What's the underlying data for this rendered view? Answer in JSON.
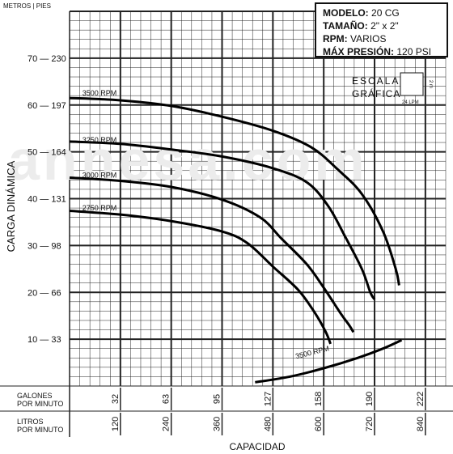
{
  "header": {
    "units_label": "METROS | PIES"
  },
  "info_box": {
    "model_label": "MODELO:",
    "model_value": "20 CG",
    "size_label": "TAMAÑO:",
    "size_value": "2\" x 2\"",
    "rpm_label": "RPM:",
    "rpm_value": "VARIOS",
    "pressure_label": "MÁX PRESIÓN:",
    "pressure_value": "120 PSI"
  },
  "scale": {
    "title_line1": "ESCALA",
    "title_line2": "GRÁFICA",
    "bottom_label": "24 LPM",
    "side_label": "2 m"
  },
  "watermark": "annesa.com",
  "chart_data": {
    "type": "line",
    "title": "",
    "xlabel": "CAPACIDAD",
    "ylabel": "CARGA DINÁMICA",
    "x_units": "LPM",
    "y_units": "m",
    "xlim": [
      0,
      888
    ],
    "ylim": [
      0,
      80
    ],
    "grid": true,
    "y_ticks": [
      {
        "m": 10,
        "ft": 33,
        "label": "10 — 33"
      },
      {
        "m": 20,
        "ft": 66,
        "label": "20 — 66"
      },
      {
        "m": 30,
        "ft": 98,
        "label": "30 — 98"
      },
      {
        "m": 40,
        "ft": 131,
        "label": "40 — 131"
      },
      {
        "m": 50,
        "ft": 164,
        "label": "50 — 164"
      },
      {
        "m": 60,
        "ft": 197,
        "label": "60 — 197"
      },
      {
        "m": 70,
        "ft": 230,
        "label": "70 — 230"
      }
    ],
    "x_ticks_gpm": {
      "row_label_line1": "GALONES",
      "row_label_line2": "POR MINUTO",
      "ticks": [
        {
          "lpm": 120,
          "label": "32"
        },
        {
          "lpm": 240,
          "label": "63"
        },
        {
          "lpm": 360,
          "label": "95"
        },
        {
          "lpm": 480,
          "label": "127"
        },
        {
          "lpm": 600,
          "label": "158"
        },
        {
          "lpm": 720,
          "label": "190"
        },
        {
          "lpm": 840,
          "label": "222"
        }
      ]
    },
    "x_ticks_lpm": {
      "row_label_line1": "LITROS",
      "row_label_line2": "POR MINUTO",
      "ticks": [
        {
          "lpm": 120,
          "label": "120"
        },
        {
          "lpm": 240,
          "label": "240"
        },
        {
          "lpm": 360,
          "label": "360"
        },
        {
          "lpm": 480,
          "label": "480"
        },
        {
          "lpm": 600,
          "label": "600"
        },
        {
          "lpm": 720,
          "label": "720"
        },
        {
          "lpm": 840,
          "label": "840"
        }
      ]
    },
    "series": [
      {
        "name": "3500 RPM",
        "label_at": [
          30,
          62
        ],
        "points": [
          [
            0,
            61.5
          ],
          [
            120,
            61.0
          ],
          [
            240,
            59.8
          ],
          [
            360,
            57.5
          ],
          [
            480,
            54.5
          ],
          [
            570,
            51.0
          ],
          [
            630,
            46.5
          ],
          [
            690,
            41.0
          ],
          [
            740,
            33.0
          ],
          [
            770,
            25.0
          ],
          [
            778,
            21.5
          ]
        ]
      },
      {
        "name": "3250 RPM",
        "label_at": [
          30,
          52
        ],
        "points": [
          [
            0,
            52.2
          ],
          [
            120,
            51.7
          ],
          [
            240,
            50.5
          ],
          [
            360,
            49.0
          ],
          [
            480,
            46.5
          ],
          [
            560,
            43.5
          ],
          [
            610,
            38.5
          ],
          [
            650,
            32.0
          ],
          [
            690,
            25.0
          ],
          [
            710,
            20.0
          ],
          [
            720,
            18.5
          ]
        ]
      },
      {
        "name": "3000 RPM",
        "label_at": [
          30,
          44.5
        ],
        "points": [
          [
            0,
            44.5
          ],
          [
            120,
            43.8
          ],
          [
            240,
            42.5
          ],
          [
            360,
            39.8
          ],
          [
            450,
            36.0
          ],
          [
            500,
            31.5
          ],
          [
            560,
            26.0
          ],
          [
            600,
            21.0
          ],
          [
            640,
            15.5
          ],
          [
            660,
            13.0
          ],
          [
            670,
            11.5
          ]
        ]
      },
      {
        "name": "2750 RPM",
        "label_at": [
          30,
          37.5
        ],
        "points": [
          [
            0,
            37.4
          ],
          [
            120,
            36.6
          ],
          [
            240,
            35.2
          ],
          [
            360,
            33.0
          ],
          [
            420,
            30.5
          ],
          [
            480,
            25.5
          ],
          [
            540,
            20.5
          ],
          [
            580,
            15.5
          ],
          [
            605,
            11.5
          ],
          [
            616,
            9.0
          ]
        ]
      },
      {
        "name": "3500 RPM",
        "kind": "npsh",
        "label_at": [
          535,
          5.8
        ],
        "points": [
          [
            438,
            0.8
          ],
          [
            520,
            2.0
          ],
          [
            600,
            3.8
          ],
          [
            680,
            6.0
          ],
          [
            740,
            8.0
          ],
          [
            784,
            9.8
          ]
        ]
      }
    ]
  }
}
